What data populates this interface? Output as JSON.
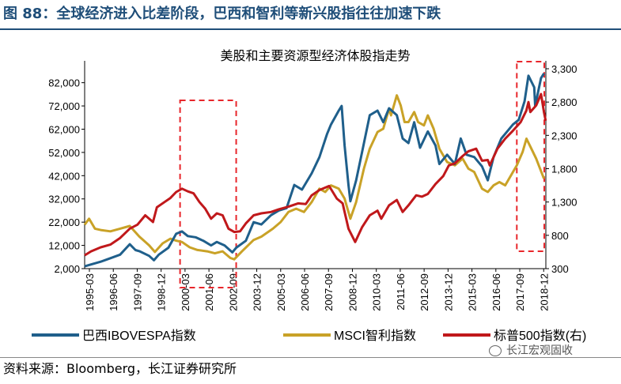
{
  "header": {
    "figure_title": "图 88：全球经济进入比差阶段，巴西和智利等新兴股指往往加速下跌"
  },
  "footer": {
    "source": "资料来源：Bloomberg，长江证券研究所",
    "watermark": "长江宏观固收"
  },
  "chart_data": {
    "type": "line",
    "title": "美股和主要资源型经济体股指走势",
    "x_ticks": [
      "1995-03",
      "1996-06",
      "1997-09",
      "1998-12",
      "2000-03",
      "2001-06",
      "2002-09",
      "2003-12",
      "2005-03",
      "2006-06",
      "2007-09",
      "2008-12",
      "2010-03",
      "2011-06",
      "2012-09",
      "2013-12",
      "2015-03",
      "2016-06",
      "2017-09",
      "2018-12"
    ],
    "x_range": [
      1995.17,
      2019.0
    ],
    "y_left": {
      "range": [
        2000,
        88000
      ],
      "ticks": [
        2000,
        12000,
        22000,
        32000,
        42000,
        52000,
        62000,
        72000,
        82000
      ],
      "tick_labels": [
        "2,000",
        "12,000",
        "22,000",
        "32,000",
        "42,000",
        "52,000",
        "62,000",
        "72,000",
        "82,000"
      ]
    },
    "y_right": {
      "range": [
        300,
        3300
      ],
      "ticks": [
        300,
        800,
        1300,
        1800,
        2300,
        2800,
        3300
      ],
      "tick_labels": [
        "300",
        "800",
        "1,300",
        "1,800",
        "2,300",
        "2,800",
        "3,300"
      ]
    },
    "grid": false,
    "legend_position": "bottom",
    "colors": {
      "ibovespa": "#1f5f8b",
      "msci_chile": "#c9a227",
      "sp500": "#c0181b",
      "highlight": "#e8262b"
    },
    "highlight_periods": [
      {
        "x_start": 2000.1,
        "x_end": 2003.0
      },
      {
        "x_start": 2017.5,
        "x_end": 2019.0
      }
    ],
    "series": [
      {
        "name": "巴西IBOVESPA指数",
        "axis": "left",
        "key": "ibovespa",
        "points": [
          [
            1995.17,
            3000
          ],
          [
            1995.5,
            3800
          ],
          [
            1996.0,
            5000
          ],
          [
            1996.5,
            6500
          ],
          [
            1997.0,
            8000
          ],
          [
            1997.5,
            12500
          ],
          [
            1997.8,
            10000
          ],
          [
            1998.0,
            9500
          ],
          [
            1998.5,
            7500
          ],
          [
            1998.75,
            5600
          ],
          [
            1999.0,
            8000
          ],
          [
            1999.5,
            11000
          ],
          [
            1999.9,
            17000
          ],
          [
            2000.2,
            18000
          ],
          [
            2000.5,
            16000
          ],
          [
            2000.9,
            15500
          ],
          [
            2001.3,
            14000
          ],
          [
            2001.7,
            12000
          ],
          [
            2002.0,
            13500
          ],
          [
            2002.4,
            12000
          ],
          [
            2002.8,
            9000
          ],
          [
            2003.0,
            11000
          ],
          [
            2003.5,
            14000
          ],
          [
            2003.9,
            22000
          ],
          [
            2004.3,
            21000
          ],
          [
            2004.8,
            25000
          ],
          [
            2005.2,
            27000
          ],
          [
            2005.6,
            28000
          ],
          [
            2006.0,
            38000
          ],
          [
            2006.4,
            36000
          ],
          [
            2006.9,
            43000
          ],
          [
            2007.3,
            50000
          ],
          [
            2007.7,
            60000
          ],
          [
            2007.9,
            64000
          ],
          [
            2008.3,
            70000
          ],
          [
            2008.45,
            72000
          ],
          [
            2008.6,
            55000
          ],
          [
            2008.8,
            38000
          ],
          [
            2008.9,
            31000
          ],
          [
            2009.2,
            40000
          ],
          [
            2009.5,
            52000
          ],
          [
            2009.9,
            68000
          ],
          [
            2010.3,
            70000
          ],
          [
            2010.6,
            65000
          ],
          [
            2010.9,
            71000
          ],
          [
            2011.3,
            68000
          ],
          [
            2011.6,
            58000
          ],
          [
            2011.9,
            56000
          ],
          [
            2012.2,
            65000
          ],
          [
            2012.5,
            54000
          ],
          [
            2012.9,
            61000
          ],
          [
            2013.3,
            55000
          ],
          [
            2013.5,
            47000
          ],
          [
            2013.9,
            51000
          ],
          [
            2014.3,
            47000
          ],
          [
            2014.6,
            58000
          ],
          [
            2014.9,
            51000
          ],
          [
            2015.3,
            50000
          ],
          [
            2015.7,
            46000
          ],
          [
            2016.0,
            40000
          ],
          [
            2016.3,
            50000
          ],
          [
            2016.7,
            58000
          ],
          [
            2016.9,
            60000
          ],
          [
            2017.3,
            64000
          ],
          [
            2017.6,
            66000
          ],
          [
            2017.9,
            74000
          ],
          [
            2018.1,
            85000
          ],
          [
            2018.4,
            80000
          ],
          [
            2018.45,
            72000
          ],
          [
            2018.6,
            78000
          ],
          [
            2018.75,
            84000
          ],
          [
            2018.9,
            86000
          ]
        ]
      },
      {
        "name": "MSCI智利指数",
        "axis": "right",
        "key": "msci_chile",
        "points": [
          [
            1995.17,
            960
          ],
          [
            1995.4,
            1050
          ],
          [
            1995.7,
            900
          ],
          [
            1996.0,
            880
          ],
          [
            1996.5,
            860
          ],
          [
            1997.0,
            900
          ],
          [
            1997.5,
            940
          ],
          [
            1998.0,
            780
          ],
          [
            1998.5,
            650
          ],
          [
            1998.8,
            550
          ],
          [
            1999.2,
            680
          ],
          [
            1999.6,
            750
          ],
          [
            1999.9,
            720
          ],
          [
            2000.2,
            700
          ],
          [
            2000.6,
            620
          ],
          [
            2001.0,
            580
          ],
          [
            2001.5,
            560
          ],
          [
            2001.9,
            530
          ],
          [
            2002.3,
            560
          ],
          [
            2002.7,
            460
          ],
          [
            2002.9,
            440
          ],
          [
            2003.3,
            560
          ],
          [
            2003.9,
            730
          ],
          [
            2004.3,
            780
          ],
          [
            2004.9,
            900
          ],
          [
            2005.3,
            1000
          ],
          [
            2005.7,
            1150
          ],
          [
            2006.1,
            1200
          ],
          [
            2006.5,
            1150
          ],
          [
            2006.9,
            1300
          ],
          [
            2007.3,
            1500
          ],
          [
            2007.6,
            1450
          ],
          [
            2007.9,
            1550
          ],
          [
            2008.3,
            1500
          ],
          [
            2008.6,
            1350
          ],
          [
            2008.9,
            1050
          ],
          [
            2009.2,
            1300
          ],
          [
            2009.6,
            1800
          ],
          [
            2009.9,
            2100
          ],
          [
            2010.3,
            2350
          ],
          [
            2010.6,
            2400
          ],
          [
            2010.9,
            2700
          ],
          [
            2011.0,
            2600
          ],
          [
            2011.3,
            2900
          ],
          [
            2011.5,
            2750
          ],
          [
            2011.7,
            2500
          ],
          [
            2011.9,
            2500
          ],
          [
            2012.2,
            2650
          ],
          [
            2012.4,
            2500
          ],
          [
            2012.7,
            2450
          ],
          [
            2012.9,
            2600
          ],
          [
            2013.2,
            2400
          ],
          [
            2013.5,
            2100
          ],
          [
            2013.9,
            1900
          ],
          [
            2014.3,
            1850
          ],
          [
            2014.7,
            1950
          ],
          [
            2015.0,
            1800
          ],
          [
            2015.3,
            1750
          ],
          [
            2015.7,
            1500
          ],
          [
            2016.0,
            1450
          ],
          [
            2016.3,
            1550
          ],
          [
            2016.6,
            1600
          ],
          [
            2016.9,
            1550
          ],
          [
            2017.2,
            1700
          ],
          [
            2017.5,
            1850
          ],
          [
            2017.8,
            2050
          ],
          [
            2018.0,
            2250
          ],
          [
            2018.25,
            2100
          ],
          [
            2018.5,
            1950
          ],
          [
            2018.7,
            1800
          ],
          [
            2018.9,
            1650
          ]
        ]
      },
      {
        "name": "标普500指数(右)",
        "axis": "right",
        "key": "sp500",
        "points": [
          [
            1995.17,
            500
          ],
          [
            1995.5,
            560
          ],
          [
            1996.0,
            620
          ],
          [
            1996.5,
            660
          ],
          [
            1997.0,
            760
          ],
          [
            1997.5,
            900
          ],
          [
            1997.9,
            960
          ],
          [
            1998.3,
            1100
          ],
          [
            1998.7,
            1000
          ],
          [
            1998.9,
            1220
          ],
          [
            1999.3,
            1300
          ],
          [
            1999.6,
            1360
          ],
          [
            1999.9,
            1450
          ],
          [
            2000.2,
            1500
          ],
          [
            2000.5,
            1460
          ],
          [
            2000.8,
            1430
          ],
          [
            2001.1,
            1300
          ],
          [
            2001.4,
            1200
          ],
          [
            2001.7,
            1050
          ],
          [
            2002.0,
            1130
          ],
          [
            2002.3,
            1100
          ],
          [
            2002.6,
            900
          ],
          [
            2002.9,
            850
          ],
          [
            2003.2,
            860
          ],
          [
            2003.5,
            980
          ],
          [
            2003.9,
            1100
          ],
          [
            2004.3,
            1130
          ],
          [
            2004.8,
            1150
          ],
          [
            2005.2,
            1190
          ],
          [
            2005.7,
            1230
          ],
          [
            2006.2,
            1280
          ],
          [
            2006.6,
            1270
          ],
          [
            2006.9,
            1400
          ],
          [
            2007.3,
            1480
          ],
          [
            2007.8,
            1540
          ],
          [
            2008.2,
            1350
          ],
          [
            2008.5,
            1280
          ],
          [
            2008.8,
            900
          ],
          [
            2009.15,
            700
          ],
          [
            2009.5,
            920
          ],
          [
            2009.9,
            1100
          ],
          [
            2010.3,
            1170
          ],
          [
            2010.5,
            1050
          ],
          [
            2010.9,
            1250
          ],
          [
            2011.3,
            1330
          ],
          [
            2011.6,
            1150
          ],
          [
            2011.9,
            1250
          ],
          [
            2012.3,
            1400
          ],
          [
            2012.6,
            1380
          ],
          [
            2012.9,
            1420
          ],
          [
            2013.3,
            1570
          ],
          [
            2013.7,
            1690
          ],
          [
            2013.99,
            1850
          ],
          [
            2014.3,
            1880
          ],
          [
            2014.7,
            1990
          ],
          [
            2014.99,
            2060
          ],
          [
            2015.4,
            2100
          ],
          [
            2015.7,
            1920
          ],
          [
            2016.0,
            1930
          ],
          [
            2016.1,
            1850
          ],
          [
            2016.5,
            2100
          ],
          [
            2016.9,
            2250
          ],
          [
            2017.3,
            2370
          ],
          [
            2017.7,
            2500
          ],
          [
            2017.99,
            2670
          ],
          [
            2018.1,
            2800
          ],
          [
            2018.2,
            2650
          ],
          [
            2018.5,
            2750
          ],
          [
            2018.75,
            2920
          ],
          [
            2018.9,
            2650
          ],
          [
            2018.99,
            2520
          ]
        ]
      }
    ]
  }
}
